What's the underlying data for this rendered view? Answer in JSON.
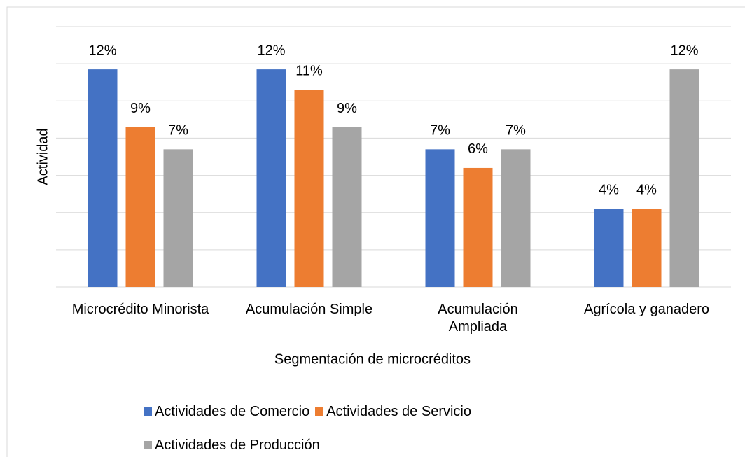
{
  "chart_data": {
    "type": "bar",
    "x_label": "Segmentación de microcréditos",
    "y_label": "Actividad",
    "categories": [
      "Microcrédito Minorista",
      "Acumulación Simple",
      "Acumulación Ampliada",
      "Agrícola y ganadero"
    ],
    "series": [
      {
        "name": "Actividades de Comercio",
        "color": "#4472c4",
        "values": [
          11.7,
          11.7,
          7.4,
          4.2
        ],
        "value_labels": [
          "12%",
          "12%",
          "7%",
          "4%"
        ]
      },
      {
        "name": "Actividades de Servicio",
        "color": "#ed7d31",
        "values": [
          8.6,
          10.6,
          6.4,
          4.2
        ],
        "value_labels": [
          "9%",
          "11%",
          "6%",
          "4%"
        ]
      },
      {
        "name": "Actividades de Producción",
        "color": "#a5a5a5",
        "values": [
          7.4,
          8.6,
          7.4,
          11.7
        ],
        "value_labels": [
          "7%",
          "9%",
          "7%",
          "12%"
        ]
      }
    ],
    "ylim": [
      0,
      14
    ],
    "yticks": [
      0,
      2,
      4,
      6,
      8,
      10,
      12,
      14
    ],
    "grid": true
  }
}
